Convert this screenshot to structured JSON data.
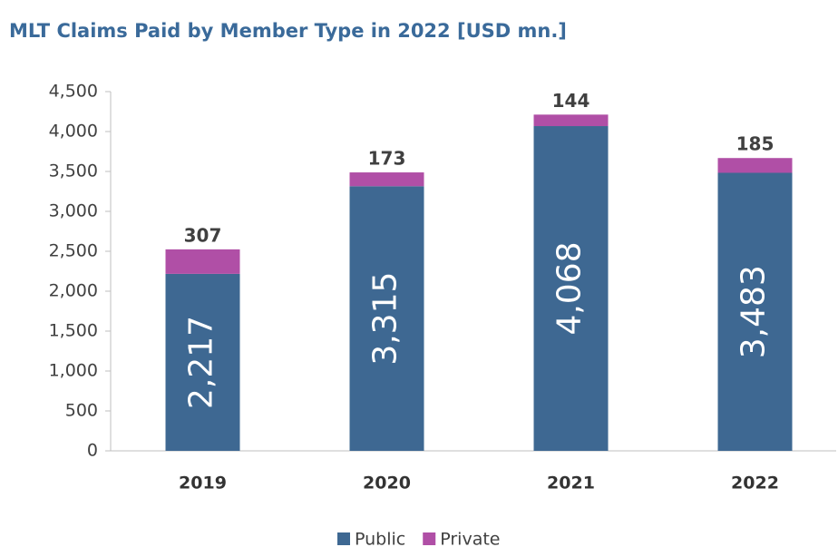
{
  "chart_data": {
    "type": "stacked-bar",
    "title": "MLT Claims Paid by Member Type in 2022 [USD mn.]",
    "categories": [
      "2019",
      "2020",
      "2021",
      "2022"
    ],
    "series": [
      {
        "name": "Public",
        "color": "#3e6892",
        "values": [
          2217,
          3315,
          4068,
          3483
        ],
        "value_labels": [
          "2,217",
          "3,315",
          "4,068",
          "3,483"
        ]
      },
      {
        "name": "Private",
        "color": "#b04fa6",
        "values": [
          307,
          173,
          144,
          185
        ]
      }
    ],
    "ylim": [
      0,
      4500
    ],
    "yticks": [
      0,
      500,
      {
        "value": 1000,
        "label": "1,000"
      },
      {
        "value": 1500,
        "label": "1,500"
      },
      {
        "value": 2000,
        "label": "2,000"
      },
      {
        "value": 2500,
        "label": "2,500"
      },
      {
        "value": 3000,
        "label": "3,000"
      },
      {
        "value": 3500,
        "label": "3,500"
      },
      {
        "value": 4000,
        "label": "4,000"
      },
      {
        "value": 4500,
        "label": "4,500"
      }
    ],
    "legend": "bottom"
  }
}
